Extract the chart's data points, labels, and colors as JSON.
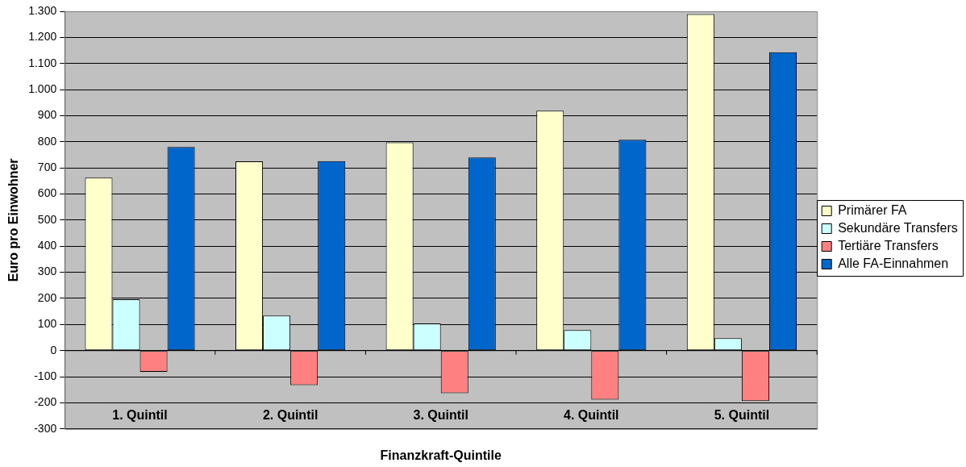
{
  "chart_data": {
    "type": "bar",
    "xlabel": "Finanzkraft-Quintile",
    "ylabel": "Euro pro Einwohner",
    "categories": [
      "1. Quintil",
      "2. Quintil",
      "3. Quintil",
      "4. Quintil",
      "5. Quintil"
    ],
    "series": [
      {
        "name": "Primärer FA",
        "color": "#ffffcc",
        "values": [
          663,
          725,
          798,
          919,
          1289
        ]
      },
      {
        "name": "Sekundäre Transfers",
        "color": "#ccffff",
        "values": [
          197,
          134,
          104,
          79,
          48
        ]
      },
      {
        "name": "Tertiäre Transfers",
        "color": "#ff8080",
        "values": [
          -81,
          -132,
          -163,
          -188,
          -193
        ]
      },
      {
        "name": "Alle FA-Einnahmen",
        "color": "#0066cc",
        "values": [
          780,
          726,
          740,
          808,
          1143
        ]
      }
    ],
    "ylim": [
      -300,
      1300
    ],
    "yticks": [
      {
        "value": -300,
        "label": "-300"
      },
      {
        "value": -200,
        "label": "-200"
      },
      {
        "value": -100,
        "label": "-100"
      },
      0,
      100,
      200,
      300,
      400,
      500,
      600,
      700,
      800,
      900,
      {
        "value": 1000,
        "label": "1.000"
      },
      {
        "value": 1100,
        "label": "1.100"
      },
      {
        "value": 1200,
        "label": "1.200"
      },
      {
        "value": 1300,
        "label": "1.300"
      }
    ],
    "grid": "y",
    "legend": "right"
  }
}
